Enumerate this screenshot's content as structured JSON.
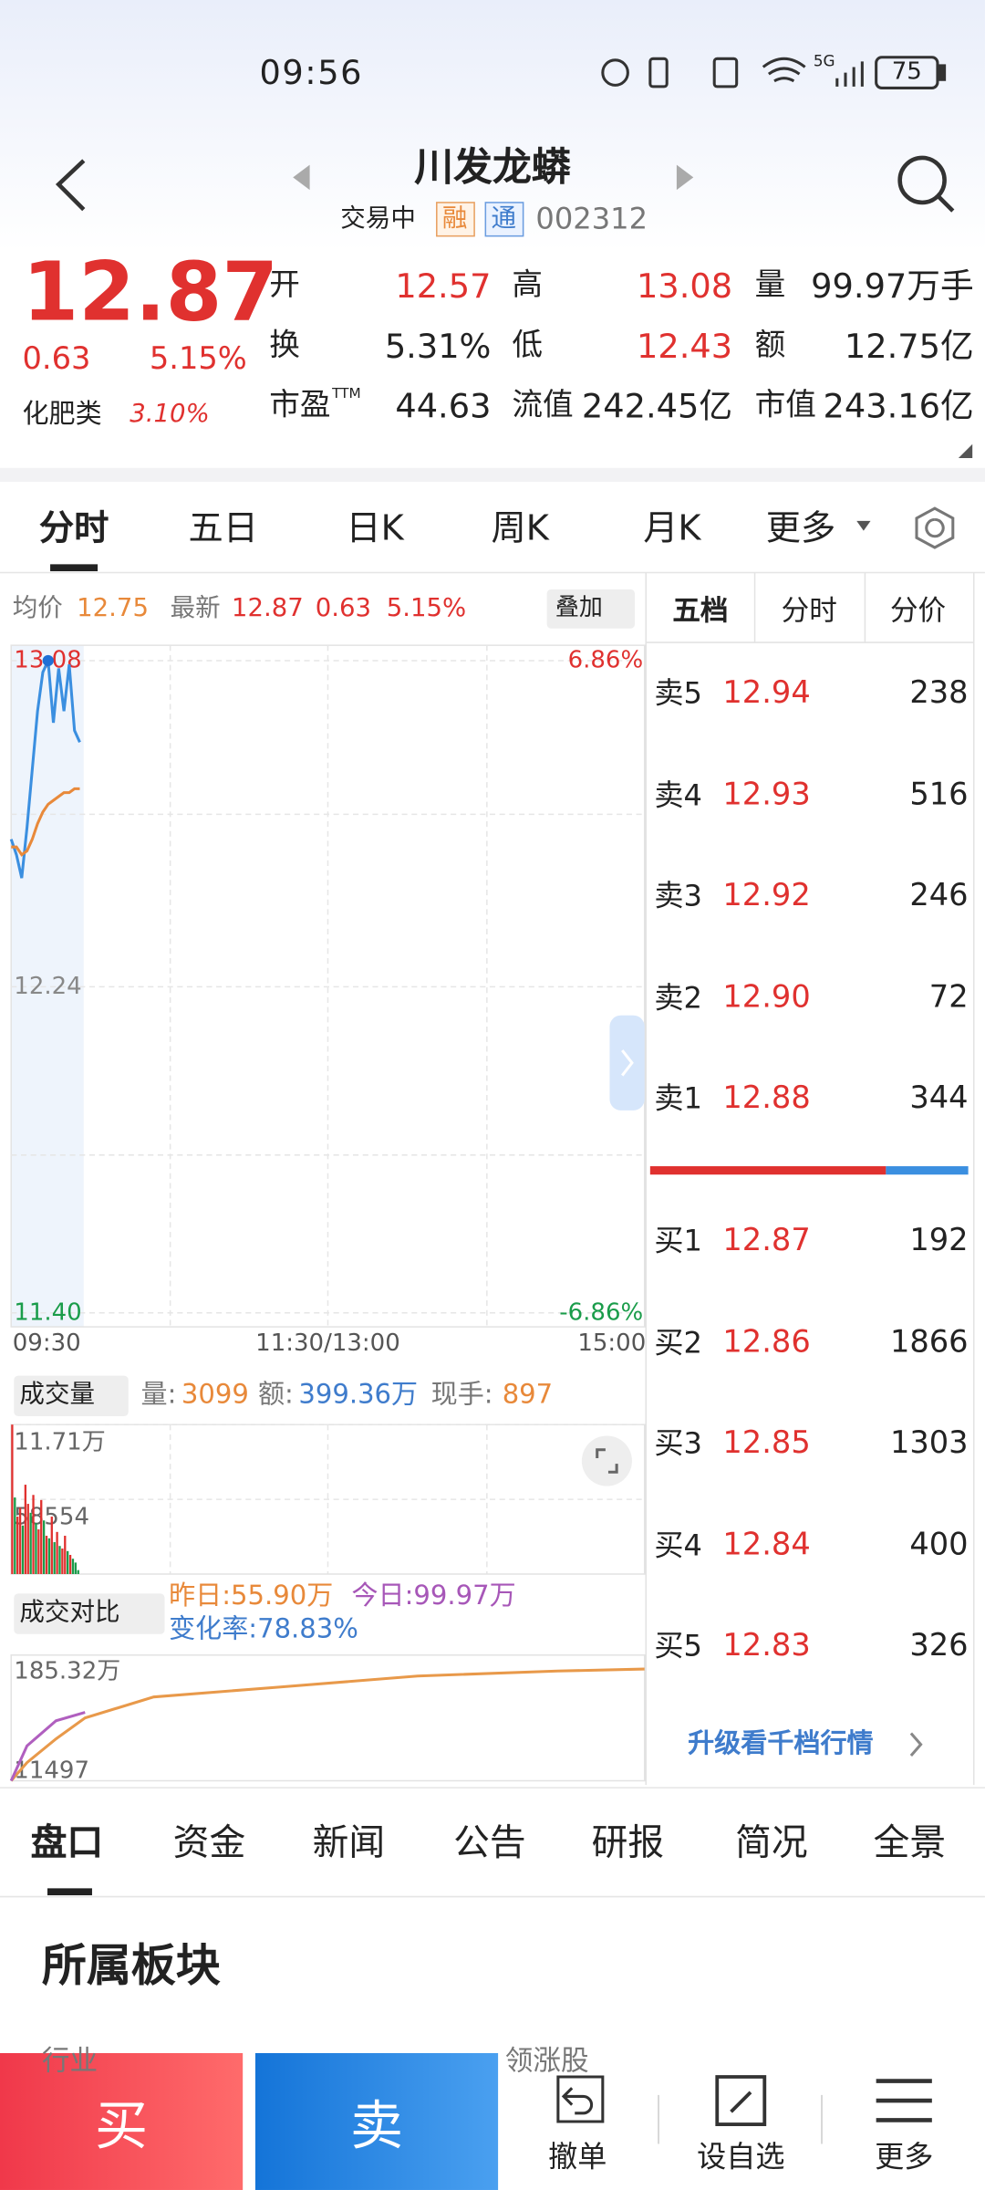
{
  "status": {
    "time": "09:56",
    "network": "5G",
    "battery": "75"
  },
  "header": {
    "title": "川发龙蟒",
    "state": "交易中",
    "tags": [
      "融",
      "通"
    ],
    "code": "002312"
  },
  "quote": {
    "price": "12.87",
    "change": "0.63",
    "pct": "5.15%",
    "sector": "化肥类",
    "sector_pct": "3.10%",
    "fields": [
      {
        "label": "开",
        "value": "12.57"
      },
      {
        "label": "高",
        "value": "13.08"
      },
      {
        "label": "量",
        "value": "99.97万手"
      },
      {
        "label": "换",
        "value": "5.31%"
      },
      {
        "label": "低",
        "value": "12.43"
      },
      {
        "label": "额",
        "value": "12.75亿"
      },
      {
        "label": "市盈",
        "label_sup": "TTM",
        "value": "44.63"
      },
      {
        "label": "流值",
        "value": "242.45亿"
      },
      {
        "label": "市值",
        "value": "243.16亿"
      }
    ]
  },
  "tabs": [
    "分时",
    "五日",
    "日K",
    "周K",
    "月K",
    "更多"
  ],
  "info": {
    "avg_label": "均价",
    "avg": "12.75",
    "latest_label": "最新",
    "latest": "12.87",
    "change": "0.63",
    "pct": "5.15%",
    "overlay": "叠加"
  },
  "volume_info": {
    "title": "成交量",
    "vol_label": "量:",
    "vol": "3099",
    "amount_label": "额:",
    "amount": "399.36万",
    "hand_label": "现手:",
    "hand": "897"
  },
  "compare_info": {
    "title": "成交对比",
    "yesterday": "昨日:55.90万",
    "today": "今日:99.97万",
    "rate": "变化率:78.83%"
  },
  "chart_data": [
    {
      "type": "line",
      "xlim": [
        0,
        240
      ],
      "xticks": [
        {
          "value": 0,
          "label": "09:30"
        },
        {
          "value": 120,
          "label": "11:30/13:00"
        },
        {
          "value": 240,
          "label": "15:00"
        }
      ],
      "ylim": [
        11.4,
        13.08
      ],
      "yticks": [
        {
          "value": 11.4,
          "label": "11.40"
        },
        12.24,
        13.08
      ],
      "y2lim": [
        -6.86,
        6.86
      ],
      "y2ticks": [
        {
          "value": -6.86,
          "label": "-6.86%"
        },
        {
          "value": 6.86,
          "label": "6.86%"
        }
      ],
      "series": [
        {
          "name": "最新",
          "color": "#3b8fe0",
          "x": [
            0,
            2,
            4,
            6,
            8,
            10,
            12,
            14,
            16,
            18,
            20,
            22,
            24,
            26
          ],
          "values": [
            12.62,
            12.58,
            12.52,
            12.65,
            12.8,
            12.95,
            13.05,
            13.08,
            12.92,
            13.06,
            12.95,
            13.07,
            12.9,
            12.87
          ]
        },
        {
          "name": "均价",
          "color": "#e8893a",
          "x": [
            0,
            2,
            4,
            6,
            8,
            10,
            12,
            14,
            16,
            18,
            20,
            22,
            24,
            26
          ],
          "values": [
            12.6,
            12.6,
            12.58,
            12.59,
            12.62,
            12.66,
            12.69,
            12.71,
            12.72,
            12.73,
            12.74,
            12.74,
            12.75,
            12.75
          ]
        }
      ]
    },
    {
      "type": "bar",
      "xlim": [
        0,
        240
      ],
      "ylim": [
        0,
        117100
      ],
      "yticks": [
        {
          "value": 58554,
          "label": "58554"
        },
        {
          "value": 117100,
          "label": "11.71万"
        }
      ],
      "x": [
        0,
        1,
        2,
        3,
        4,
        5,
        6,
        7,
        8,
        9,
        10,
        11,
        12,
        13,
        14,
        15,
        16,
        17,
        18,
        19,
        20,
        21,
        22,
        23,
        24,
        25
      ],
      "values": [
        117100,
        60000,
        45000,
        52000,
        38000,
        70000,
        55000,
        48000,
        62000,
        40000,
        35000,
        58000,
        42000,
        30000,
        28000,
        45000,
        25000,
        33000,
        22000,
        20000,
        30000,
        18000,
        15000,
        12000,
        9000,
        3099
      ],
      "colors": [
        "#e0312f",
        "#1a9c4a",
        "#e0312f",
        "#e0312f",
        "#1a9c4a",
        "#e0312f",
        "#e0312f",
        "#1a9c4a",
        "#e0312f",
        "#1a9c4a",
        "#e0312f",
        "#e0312f",
        "#1a9c4a",
        "#e0312f",
        "#1a9c4a",
        "#e0312f",
        "#1a9c4a",
        "#e0312f",
        "#1a9c4a",
        "#e0312f",
        "#e0312f",
        "#1a9c4a",
        "#e0312f",
        "#1a9c4a",
        "#1a9c4a",
        "#1a9c4a"
      ]
    },
    {
      "type": "line",
      "xlim": [
        0,
        240
      ],
      "ylim": [
        11497,
        1853200
      ],
      "yticks": [
        {
          "value": 11497,
          "label": "11497"
        },
        {
          "value": 1853200,
          "label": "185.32万"
        }
      ],
      "series": [
        {
          "name": "昨日",
          "color": "#e8994a",
          "x": [
            0,
            6,
            17,
            28,
            54,
            101,
            154,
            207,
            240
          ],
          "values": [
            11497,
            310772,
            702135,
            1047453,
            1392772,
            1553921,
            1738092,
            1820000,
            1853200
          ]
        },
        {
          "name": "今日",
          "color": "#b05fbf",
          "x": [
            0,
            6,
            17,
            28
          ],
          "values": [
            11497,
            587000,
            1001000,
            1139000
          ]
        }
      ]
    }
  ],
  "book": {
    "tabs": [
      "五档",
      "分时",
      "分价"
    ],
    "asks": [
      {
        "label": "卖5",
        "price": "12.94",
        "volume": "238"
      },
      {
        "label": "卖4",
        "price": "12.93",
        "volume": "516"
      },
      {
        "label": "卖3",
        "price": "12.92",
        "volume": "246"
      },
      {
        "label": "卖2",
        "price": "12.90",
        "volume": "72"
      },
      {
        "label": "卖1",
        "price": "12.88",
        "volume": "344"
      }
    ],
    "bids": [
      {
        "label": "买1",
        "price": "12.87",
        "volume": "192"
      },
      {
        "label": "买2",
        "price": "12.86",
        "volume": "1866"
      },
      {
        "label": "买3",
        "price": "12.85",
        "volume": "1303"
      },
      {
        "label": "买4",
        "price": "12.84",
        "volume": "400"
      },
      {
        "label": "买5",
        "price": "12.83",
        "volume": "326"
      }
    ],
    "upgrade": "升级看千档行情"
  },
  "bottom_tabs": [
    "盘口",
    "资金",
    "新闻",
    "公告",
    "研报",
    "简况",
    "全景"
  ],
  "section": {
    "title": "所属板块",
    "industry": "行业",
    "leader": "领涨股"
  },
  "actions": {
    "buy": "买",
    "sell": "卖",
    "tools": [
      "撤单",
      "设自选",
      "更多"
    ]
  }
}
